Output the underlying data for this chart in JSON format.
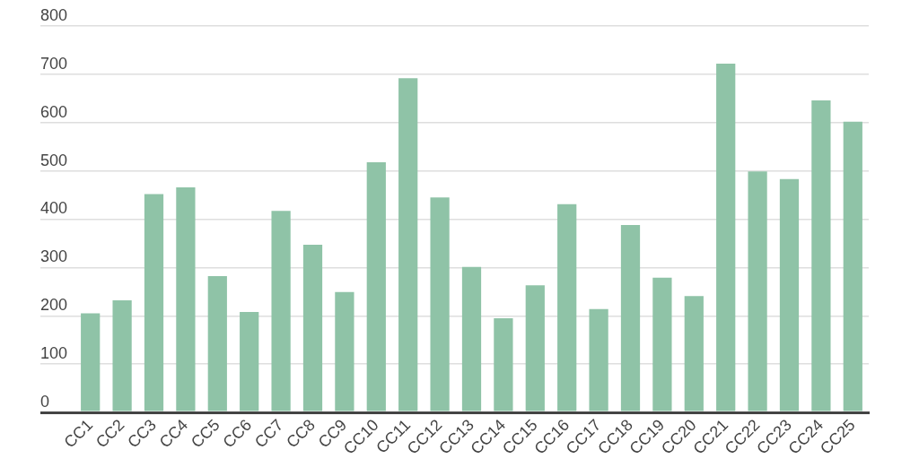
{
  "chart_data": {
    "type": "bar",
    "categories": [
      "CC1",
      "CC2",
      "CC3",
      "CC4",
      "CC5",
      "CC6",
      "CC7",
      "CC8",
      "CC9",
      "CC10",
      "CC11",
      "CC12",
      "CC13",
      "CC14",
      "CC15",
      "CC16",
      "CC17",
      "CC18",
      "CC19",
      "CC20",
      "CC21",
      "CC22",
      "CC23",
      "CC24",
      "CC25"
    ],
    "values": [
      205,
      232,
      452,
      466,
      282,
      208,
      417,
      347,
      249,
      518,
      692,
      445,
      301,
      195,
      263,
      431,
      214,
      388,
      279,
      241,
      722,
      499,
      483,
      646,
      602
    ],
    "color": "#8fc3a7",
    "ylim": [
      0,
      800
    ],
    "yticks": [
      0,
      100,
      200,
      300,
      400,
      500,
      600,
      700,
      800
    ],
    "grid": "y"
  }
}
